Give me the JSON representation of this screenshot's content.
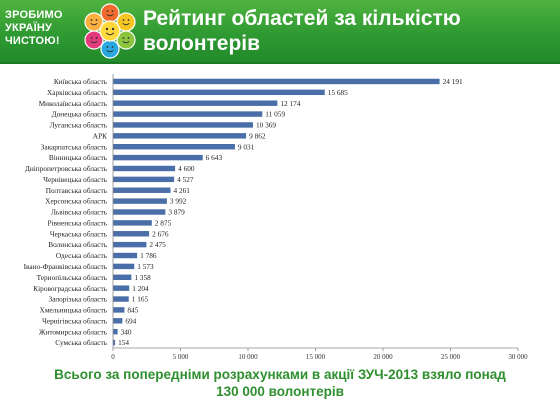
{
  "header": {
    "logo_lines": [
      "ЗРОБИМО",
      "УКРАЇНУ",
      "ЧИСТОЮ!"
    ],
    "title": "Рейтинг областей за кількістю волонтерів"
  },
  "footer": {
    "line1": "Всього за попередніми розрахунками в акції ЗУЧ-2013 взяло понад",
    "line2": "130 000 волонтерів"
  },
  "colors": {
    "header_green": "#2f9a32",
    "bar": "#4a6fa8",
    "footer_text": "#2e8f2e"
  },
  "chart_data": {
    "type": "bar",
    "orientation": "horizontal",
    "title": "",
    "xlabel": "",
    "ylabel": "",
    "categories": [
      "Київська область",
      "Харківська область",
      "Миколаївська область",
      "Донецька область",
      "Луганська область",
      "АРК",
      "Закарпатська область",
      "Вінницька область",
      "Дніпропетровська область",
      "Чернівецька область",
      "Полтавська область",
      "Херсонська область",
      "Львівська область",
      "Рівненська область",
      "Черкаська область",
      "Волинська область",
      "Одеська область",
      "Івано-Франківська область",
      "Тернопільська область",
      "Кіровоградська область",
      "Запорізька область",
      "Хмельницька область",
      "Чернігівська область",
      "Житомирська область",
      "Сумська область"
    ],
    "values": [
      24191,
      15685,
      12174,
      11059,
      10369,
      9862,
      9031,
      6643,
      4600,
      4527,
      4261,
      3992,
      3879,
      2875,
      2676,
      2475,
      1786,
      1573,
      1358,
      1204,
      1165,
      845,
      694,
      340,
      154
    ],
    "value_labels": [
      "24 191",
      "15 685",
      "12 174",
      "11 059",
      "10 369",
      "9 862",
      "9 031",
      "6 643",
      "4 600",
      "4 527",
      "4 261",
      "3 992",
      "3 879",
      "2 875",
      "2 676",
      "2 475",
      "1 786",
      "1 573",
      "1 358",
      "1 204",
      "1 165",
      "845",
      "694",
      "340",
      "154"
    ],
    "xlim": [
      0,
      30000
    ],
    "x_ticks": [
      0,
      5000,
      10000,
      15000,
      20000,
      25000,
      30000
    ],
    "x_tick_labels": [
      "0",
      "5 000",
      "10 000",
      "15 000",
      "20 000",
      "25 000",
      "30 000"
    ],
    "grid": false,
    "legend": "none"
  }
}
